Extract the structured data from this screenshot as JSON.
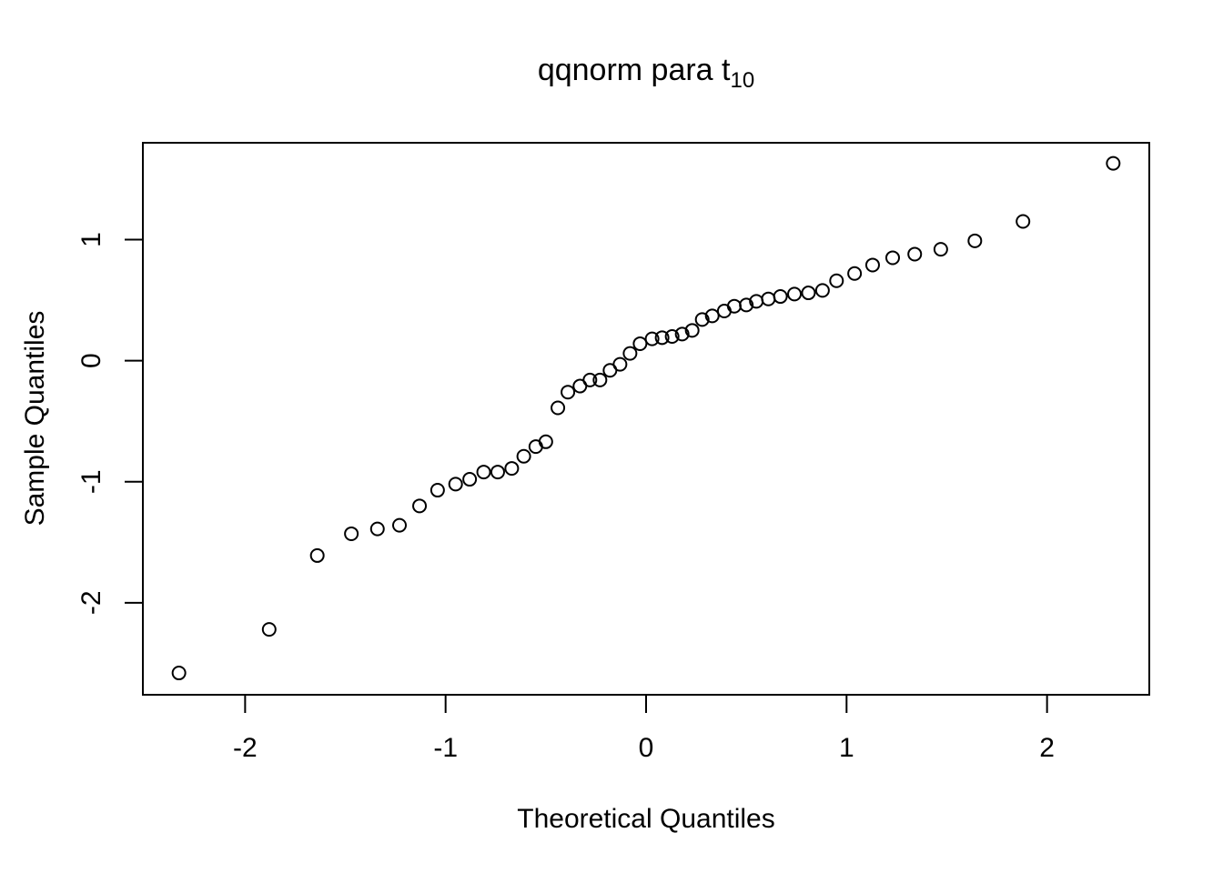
{
  "chart_data": {
    "type": "scatter",
    "title": "qqnorm para t",
    "title_subscript": "10",
    "xlabel": "Theoretical Quantiles",
    "ylabel": "Sample Quantiles",
    "xlim": [
      -2.51,
      2.51
    ],
    "ylim": [
      -2.76,
      1.8
    ],
    "x_ticks": [
      -2,
      -1,
      0,
      1,
      2
    ],
    "y_ticks": [
      -2,
      -1,
      0,
      1
    ],
    "x_tick_labels": [
      "-2",
      "-1",
      "0",
      "1",
      "2"
    ],
    "y_tick_labels": [
      "-2",
      "-1",
      "0",
      "1"
    ],
    "grid": false,
    "legend": "none",
    "marker": "open-circle",
    "colors": {
      "marker_stroke": "#000000",
      "axis": "#000000",
      "background": "#ffffff"
    },
    "points": [
      {
        "x": -2.33,
        "y": -2.58
      },
      {
        "x": -1.88,
        "y": -2.22
      },
      {
        "x": -1.64,
        "y": -1.61
      },
      {
        "x": -1.47,
        "y": -1.43
      },
      {
        "x": -1.34,
        "y": -1.39
      },
      {
        "x": -1.23,
        "y": -1.36
      },
      {
        "x": -1.13,
        "y": -1.2
      },
      {
        "x": -1.04,
        "y": -1.07
      },
      {
        "x": -0.95,
        "y": -1.02
      },
      {
        "x": -0.88,
        "y": -0.98
      },
      {
        "x": -0.81,
        "y": -0.92
      },
      {
        "x": -0.74,
        "y": -0.92
      },
      {
        "x": -0.67,
        "y": -0.89
      },
      {
        "x": -0.61,
        "y": -0.79
      },
      {
        "x": -0.55,
        "y": -0.71
      },
      {
        "x": -0.5,
        "y": -0.67
      },
      {
        "x": -0.44,
        "y": -0.39
      },
      {
        "x": -0.39,
        "y": -0.26
      },
      {
        "x": -0.33,
        "y": -0.21
      },
      {
        "x": -0.28,
        "y": -0.16
      },
      {
        "x": -0.23,
        "y": -0.16
      },
      {
        "x": -0.18,
        "y": -0.08
      },
      {
        "x": -0.13,
        "y": -0.03
      },
      {
        "x": -0.08,
        "y": 0.06
      },
      {
        "x": -0.03,
        "y": 0.14
      },
      {
        "x": 0.03,
        "y": 0.18
      },
      {
        "x": 0.08,
        "y": 0.19
      },
      {
        "x": 0.13,
        "y": 0.2
      },
      {
        "x": 0.18,
        "y": 0.22
      },
      {
        "x": 0.23,
        "y": 0.25
      },
      {
        "x": 0.28,
        "y": 0.34
      },
      {
        "x": 0.33,
        "y": 0.37
      },
      {
        "x": 0.39,
        "y": 0.41
      },
      {
        "x": 0.44,
        "y": 0.45
      },
      {
        "x": 0.5,
        "y": 0.46
      },
      {
        "x": 0.55,
        "y": 0.49
      },
      {
        "x": 0.61,
        "y": 0.51
      },
      {
        "x": 0.67,
        "y": 0.53
      },
      {
        "x": 0.74,
        "y": 0.55
      },
      {
        "x": 0.81,
        "y": 0.56
      },
      {
        "x": 0.88,
        "y": 0.58
      },
      {
        "x": 0.95,
        "y": 0.66
      },
      {
        "x": 1.04,
        "y": 0.72
      },
      {
        "x": 1.13,
        "y": 0.79
      },
      {
        "x": 1.23,
        "y": 0.85
      },
      {
        "x": 1.34,
        "y": 0.88
      },
      {
        "x": 1.47,
        "y": 0.92
      },
      {
        "x": 1.64,
        "y": 0.99
      },
      {
        "x": 1.88,
        "y": 1.15
      },
      {
        "x": 2.33,
        "y": 1.63
      }
    ]
  }
}
